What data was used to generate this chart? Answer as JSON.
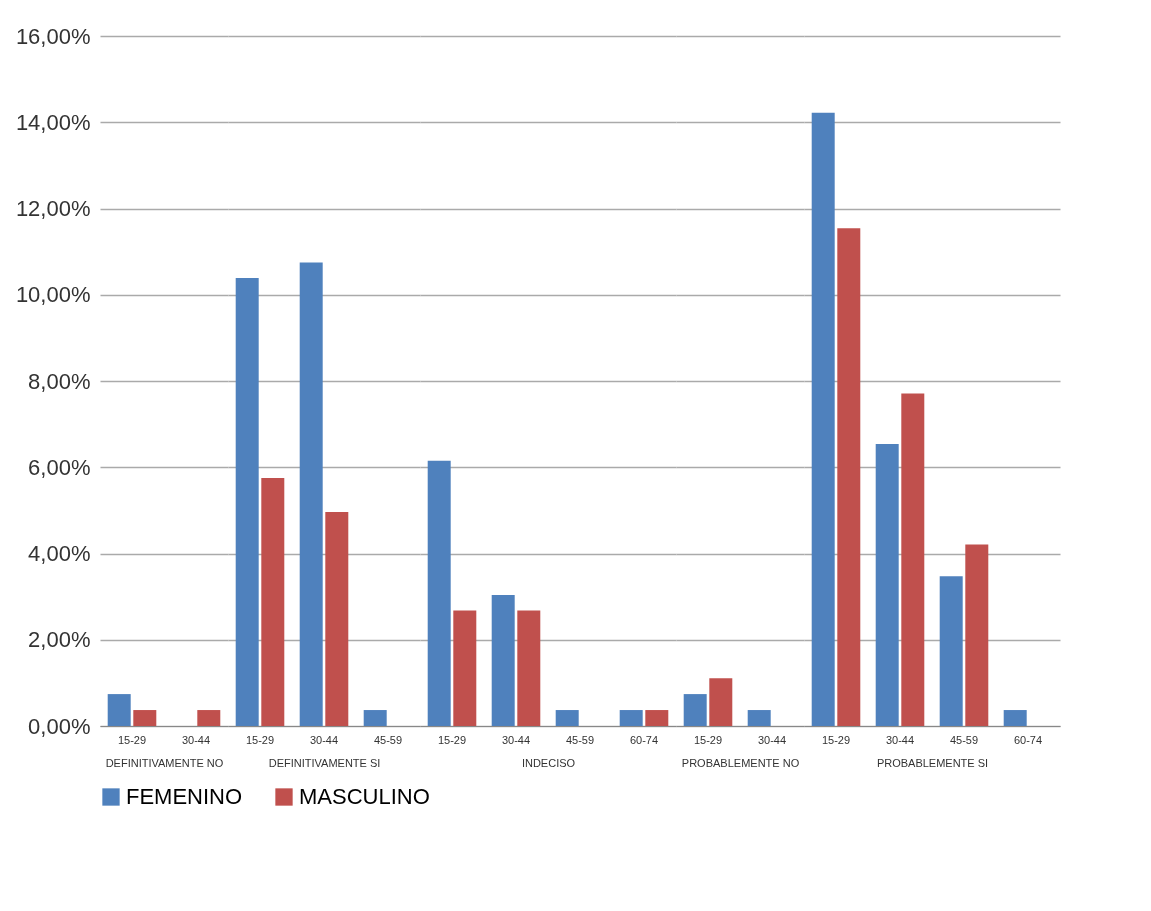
{
  "chart_data": [
    {
      "type": "bar",
      "xlabel": "DEFINITIVAMENTE NO",
      "categories": [
        "15-29",
        "30-44"
      ],
      "series": [
        {
          "name": "FEMENINO",
          "color": "#4f81bd",
          "values": [
            0.74,
            null
          ]
        },
        {
          "name": "MASCULINO",
          "color": "#c0504d",
          "values": [
            0.37,
            0.37
          ]
        }
      ],
      "ylim": [
        0,
        16
      ],
      "yticks": [
        {
          "value": 0,
          "label": "0,00%"
        },
        {
          "value": 2,
          "label": "2,00%"
        },
        {
          "value": 4,
          "label": "4,00%"
        },
        {
          "value": 6,
          "label": "6,00%"
        },
        {
          "value": 8,
          "label": "8,00%"
        },
        {
          "value": 10,
          "label": "10,00%"
        },
        {
          "value": 12,
          "label": "12,00%"
        },
        {
          "value": 14,
          "label": "14,00%"
        },
        {
          "value": 16,
          "label": "16,00%"
        }
      ],
      "grid": "y",
      "legend": "bottom"
    },
    {
      "type": "bar",
      "xlabel": "DEFINITIVAMENTE SI",
      "categories": [
        "15-29",
        "30-44",
        "45-59"
      ],
      "series": [
        {
          "name": "FEMENINO",
          "color": "#4f81bd",
          "values": [
            10.39,
            10.75,
            0.37
          ]
        },
        {
          "name": "MASCULINO",
          "color": "#c0504d",
          "values": [
            5.75,
            4.96,
            null
          ]
        }
      ],
      "ylim": [
        0,
        16
      ],
      "yticks": [
        0,
        2,
        4,
        6,
        8,
        10,
        12,
        14,
        16
      ],
      "grid": "y",
      "legend": "bottom",
      "tick_labels": "x"
    },
    {
      "type": "bar",
      "xlabel": "INDECISO",
      "categories": [
        "15-29",
        "30-44",
        "45-59",
        "60-74"
      ],
      "series": [
        {
          "name": "FEMENINO",
          "color": "#4f81bd",
          "values": [
            6.15,
            3.04,
            0.37,
            0.37
          ]
        },
        {
          "name": "MASCULINO",
          "color": "#c0504d",
          "values": [
            2.68,
            2.68,
            null,
            0.37
          ]
        }
      ],
      "ylim": [
        0,
        16
      ],
      "yticks": [
        0,
        2,
        4,
        6,
        8,
        10,
        12,
        14,
        16
      ],
      "grid": "y",
      "legend": "bottom",
      "tick_labels": "x"
    },
    {
      "type": "bar",
      "xlabel": "PROBABLEMENTE NO",
      "categories": [
        "15-29",
        "30-44"
      ],
      "series": [
        {
          "name": "FEMENINO",
          "color": "#4f81bd",
          "values": [
            0.74,
            0.37
          ]
        },
        {
          "name": "MASCULINO",
          "color": "#c0504d",
          "values": [
            1.11,
            null
          ]
        }
      ],
      "ylim": [
        0,
        16
      ],
      "yticks": [
        0,
        2,
        4,
        6,
        8,
        10,
        12,
        14,
        16
      ],
      "grid": "y",
      "legend": "bottom",
      "tick_labels": "x"
    },
    {
      "type": "bar",
      "xlabel": "PROBABLEMENTE SI",
      "categories": [
        "15-29",
        "30-44",
        "45-59",
        "60-74"
      ],
      "series": [
        {
          "name": "FEMENINO",
          "color": "#4f81bd",
          "values": [
            14.22,
            6.54,
            3.47,
            0.37
          ]
        },
        {
          "name": "MASCULINO",
          "color": "#c0504d",
          "values": [
            11.54,
            7.71,
            4.21,
            null
          ]
        }
      ],
      "ylim": [
        0,
        16
      ],
      "yticks": [
        0,
        2,
        4,
        6,
        8,
        10,
        12,
        14,
        16
      ],
      "grid": "y",
      "legend": "bottom",
      "tick_labels": "x"
    }
  ]
}
